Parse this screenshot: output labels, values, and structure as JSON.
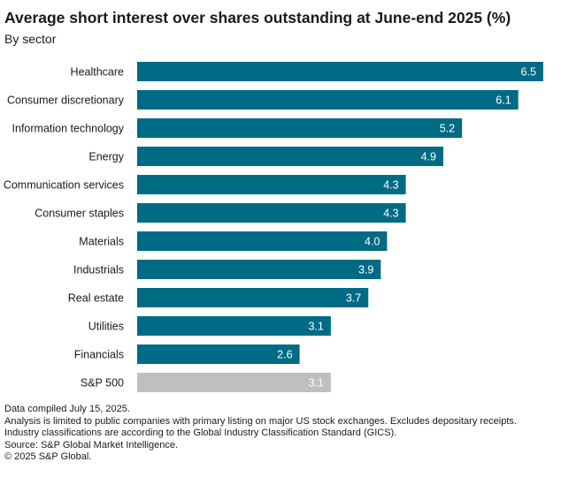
{
  "title": "Average short interest over shares outstanding at June-end 2025 (%)",
  "subtitle": "By sector",
  "colors": {
    "bar": "#006b84",
    "benchmark": "#bfbfbf",
    "label": "#ffffff"
  },
  "chart_data": {
    "type": "bar",
    "orientation": "horizontal",
    "title": "Average short interest over shares outstanding at June-end 2025 (%)",
    "subtitle": "By sector",
    "categories": [
      "Healthcare",
      "Consumer discretionary",
      "Information technology",
      "Energy",
      "Communication services",
      "Consumer staples",
      "Materials",
      "Industrials",
      "Real estate",
      "Utilities",
      "Financials",
      "S&P 500"
    ],
    "values": [
      6.5,
      6.1,
      5.2,
      4.9,
      4.3,
      4.3,
      4.0,
      3.9,
      3.7,
      3.1,
      2.6,
      3.1
    ],
    "value_labels": [
      "6.5",
      "6.1",
      "5.2",
      "4.9",
      "4.3",
      "4.3",
      "4.0",
      "3.9",
      "3.7",
      "3.1",
      "2.6",
      "3.1"
    ],
    "highlight": [
      "S&P 500"
    ],
    "xlim": [
      0,
      6.6
    ],
    "grid": false,
    "xlabel": "",
    "ylabel": ""
  },
  "footnotes": [
    "Data compiled July 15, 2025.",
    "Analysis is limited to public companies with primary listing on major US stock exchanges. Excludes depositary receipts.",
    "Industry classifications are according to the Global Industry Classification Standard (GICS).",
    "Source: S&P Global Market Intelligence.",
    "© 2025 S&P Global."
  ]
}
